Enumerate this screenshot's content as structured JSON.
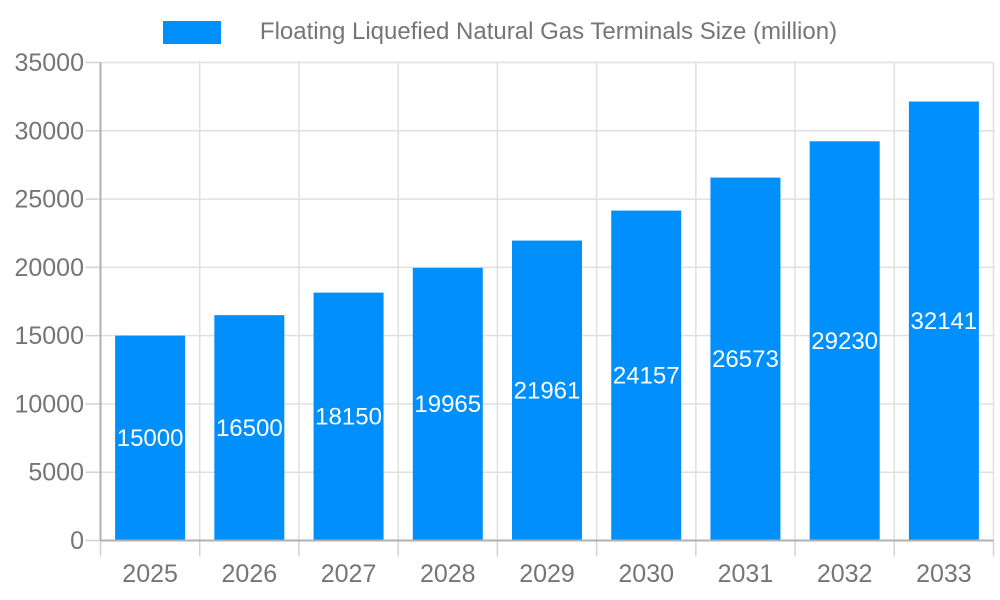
{
  "chart_data": {
    "type": "bar",
    "title": "",
    "legend": "Floating Liquefied Natural Gas Terminals Size (million)",
    "legend_position": "top",
    "categories": [
      "2025",
      "2026",
      "2027",
      "2028",
      "2029",
      "2030",
      "2031",
      "2032",
      "2033"
    ],
    "values": [
      15000,
      16500,
      18150,
      19965,
      21961,
      24157,
      26573,
      29230,
      32141
    ],
    "xlabel": "",
    "ylabel": "",
    "ylim": [
      0,
      35000
    ],
    "yticks": [
      0,
      5000,
      10000,
      15000,
      20000,
      25000,
      30000,
      35000
    ],
    "grid": true,
    "colors": {
      "bar": "#008FFB",
      "bar_value_label": "#ffffff",
      "axis_text": "#757575",
      "grid_line": "#e0e0e0",
      "axis_line": "#b0b0b0",
      "tick_line": "#d2d2d2"
    }
  }
}
